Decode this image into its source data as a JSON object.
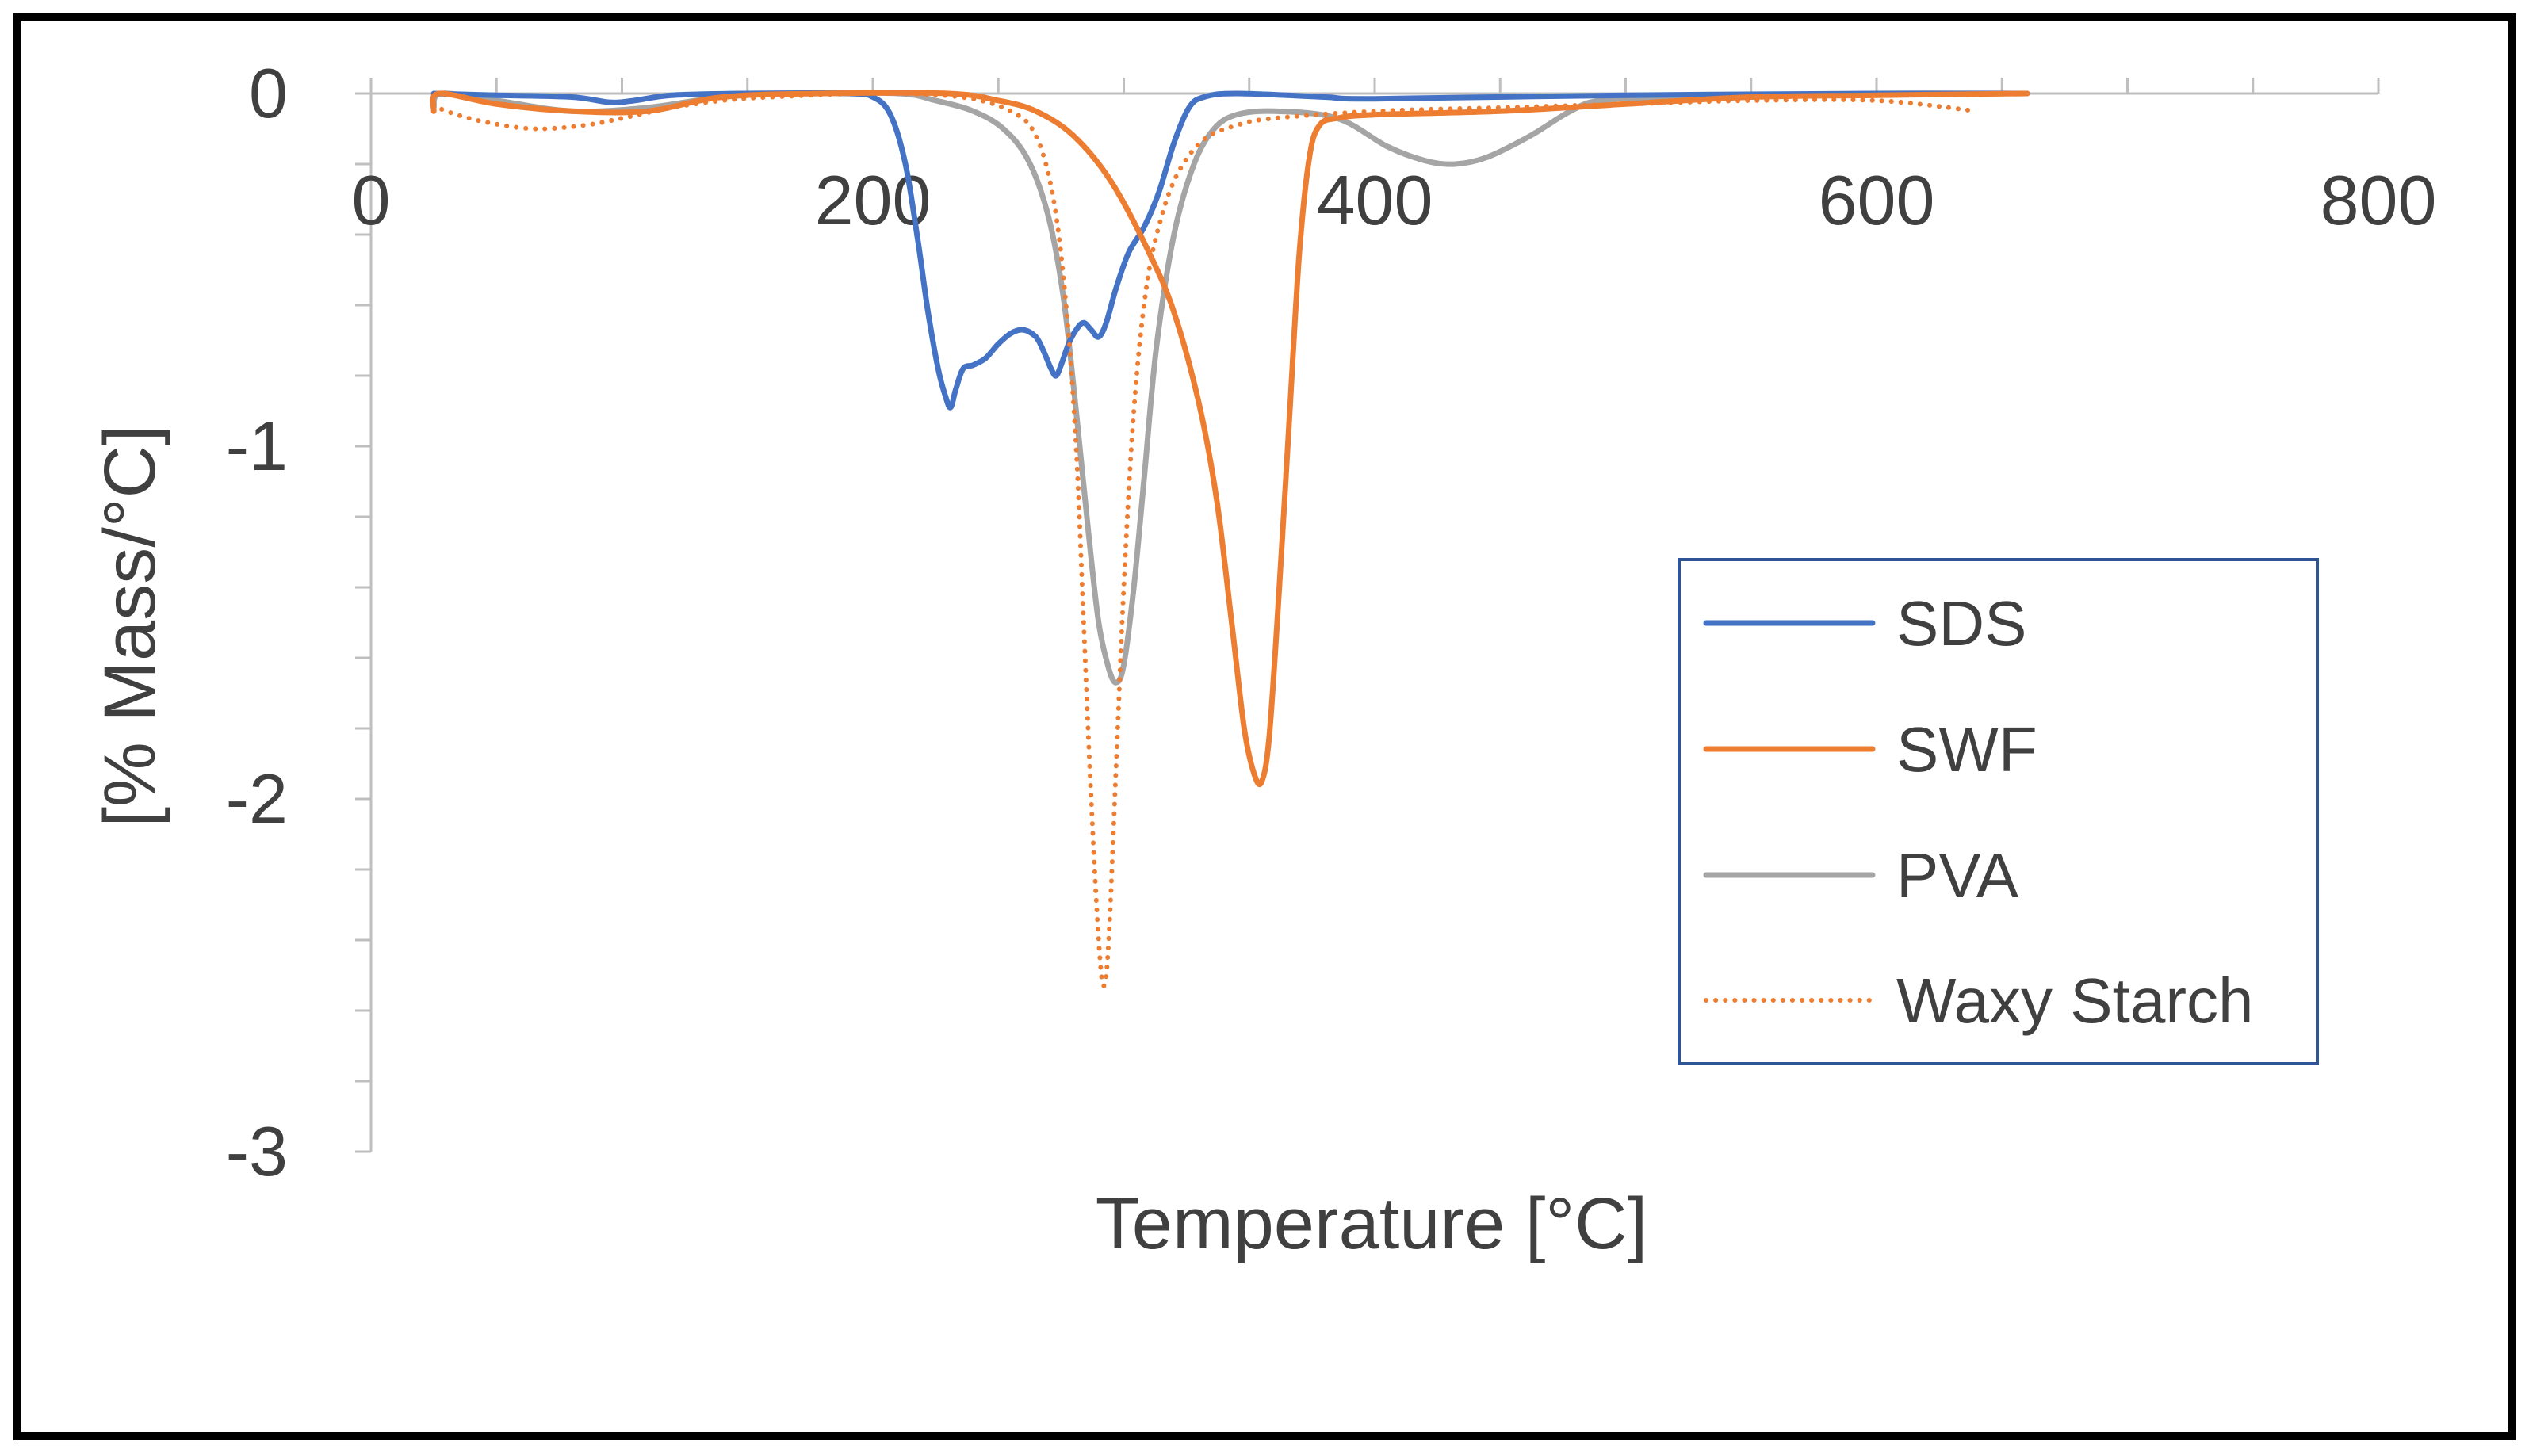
{
  "chart_data": {
    "type": "line",
    "title": "",
    "xlabel": "Temperature [°C]",
    "ylabel": "[% Mass/°C]",
    "xlim": [
      0,
      800
    ],
    "ylim": [
      -3,
      0
    ],
    "x_ticks": [
      0,
      200,
      400,
      600,
      800
    ],
    "x_tick_labels": [
      "0",
      "200",
      "400",
      "600",
      "800"
    ],
    "y_ticks": [
      0,
      -1,
      -2,
      -3
    ],
    "y_tick_labels": [
      "0",
      "-1",
      "-2",
      "-3"
    ],
    "grid": false,
    "legend_position": "right",
    "series": [
      {
        "name": "SDS",
        "color": "#4472C4",
        "style": "solid",
        "points": [
          [
            25,
            0
          ],
          [
            50,
            -0.005
          ],
          [
            80,
            -0.01
          ],
          [
            95,
            -0.025
          ],
          [
            105,
            -0.02
          ],
          [
            120,
            -0.005
          ],
          [
            150,
            0
          ],
          [
            190,
            0
          ],
          [
            200,
            -0.01
          ],
          [
            207,
            -0.06
          ],
          [
            213,
            -0.2
          ],
          [
            218,
            -0.42
          ],
          [
            222,
            -0.62
          ],
          [
            226,
            -0.78
          ],
          [
            229,
            -0.86
          ],
          [
            231,
            -0.89
          ],
          [
            233,
            -0.84
          ],
          [
            236,
            -0.78
          ],
          [
            240,
            -0.77
          ],
          [
            245,
            -0.75
          ],
          [
            250,
            -0.71
          ],
          [
            255,
            -0.68
          ],
          [
            260,
            -0.67
          ],
          [
            265,
            -0.69
          ],
          [
            268,
            -0.73
          ],
          [
            271,
            -0.78
          ],
          [
            273,
            -0.8
          ],
          [
            275,
            -0.77
          ],
          [
            278,
            -0.71
          ],
          [
            281,
            -0.67
          ],
          [
            284,
            -0.65
          ],
          [
            287,
            -0.67
          ],
          [
            290,
            -0.69
          ],
          [
            293,
            -0.65
          ],
          [
            297,
            -0.55
          ],
          [
            302,
            -0.45
          ],
          [
            308,
            -0.38
          ],
          [
            314,
            -0.28
          ],
          [
            320,
            -0.14
          ],
          [
            326,
            -0.04
          ],
          [
            332,
            -0.01
          ],
          [
            345,
            0
          ],
          [
            380,
            -0.01
          ],
          [
            400,
            -0.015
          ],
          [
            500,
            -0.005
          ],
          [
            600,
            0
          ],
          [
            660,
            0
          ]
        ]
      },
      {
        "name": "SWF",
        "color": "#ED7D31",
        "style": "solid",
        "points": [
          [
            25,
            -0.05
          ],
          [
            27,
            0
          ],
          [
            50,
            -0.03
          ],
          [
            80,
            -0.05
          ],
          [
            110,
            -0.05
          ],
          [
            140,
            -0.01
          ],
          [
            180,
            0
          ],
          [
            230,
            0
          ],
          [
            250,
            -0.02
          ],
          [
            265,
            -0.05
          ],
          [
            280,
            -0.12
          ],
          [
            295,
            -0.25
          ],
          [
            310,
            -0.45
          ],
          [
            320,
            -0.62
          ],
          [
            330,
            -0.88
          ],
          [
            337,
            -1.15
          ],
          [
            343,
            -1.5
          ],
          [
            348,
            -1.8
          ],
          [
            352,
            -1.93
          ],
          [
            355,
            -1.95
          ],
          [
            358,
            -1.82
          ],
          [
            362,
            -1.4
          ],
          [
            366,
            -0.92
          ],
          [
            370,
            -0.45
          ],
          [
            374,
            -0.18
          ],
          [
            378,
            -0.09
          ],
          [
            385,
            -0.07
          ],
          [
            400,
            -0.06
          ],
          [
            450,
            -0.05
          ],
          [
            500,
            -0.03
          ],
          [
            550,
            -0.01
          ],
          [
            600,
            -0.005
          ],
          [
            660,
            0
          ]
        ]
      },
      {
        "name": "PVA",
        "color": "#A5A5A5",
        "style": "solid",
        "points": [
          [
            25,
            -0.04
          ],
          [
            28,
            0
          ],
          [
            50,
            -0.02
          ],
          [
            80,
            -0.05
          ],
          [
            110,
            -0.04
          ],
          [
            140,
            -0.01
          ],
          [
            170,
            0
          ],
          [
            210,
            0
          ],
          [
            225,
            -0.02
          ],
          [
            240,
            -0.05
          ],
          [
            252,
            -0.1
          ],
          [
            262,
            -0.19
          ],
          [
            270,
            -0.35
          ],
          [
            276,
            -0.58
          ],
          [
            281,
            -0.9
          ],
          [
            286,
            -1.25
          ],
          [
            290,
            -1.5
          ],
          [
            294,
            -1.63
          ],
          [
            297,
            -1.67
          ],
          [
            300,
            -1.62
          ],
          [
            304,
            -1.4
          ],
          [
            308,
            -1.1
          ],
          [
            313,
            -0.72
          ],
          [
            320,
            -0.4
          ],
          [
            328,
            -0.2
          ],
          [
            336,
            -0.1
          ],
          [
            345,
            -0.06
          ],
          [
            360,
            -0.05
          ],
          [
            385,
            -0.07
          ],
          [
            405,
            -0.15
          ],
          [
            420,
            -0.19
          ],
          [
            432,
            -0.2
          ],
          [
            445,
            -0.18
          ],
          [
            462,
            -0.12
          ],
          [
            478,
            -0.05
          ],
          [
            490,
            -0.02
          ],
          [
            520,
            -0.01
          ],
          [
            600,
            0
          ],
          [
            660,
            0
          ]
        ]
      },
      {
        "name": "Waxy Starch",
        "color": "#ED7D31",
        "style": "dotted",
        "points": [
          [
            25,
            -0.03
          ],
          [
            30,
            -0.05
          ],
          [
            45,
            -0.08
          ],
          [
            65,
            -0.1
          ],
          [
            85,
            -0.09
          ],
          [
            100,
            -0.07
          ],
          [
            120,
            -0.04
          ],
          [
            140,
            -0.02
          ],
          [
            160,
            -0.01
          ],
          [
            200,
            0
          ],
          [
            235,
            -0.01
          ],
          [
            255,
            -0.05
          ],
          [
            265,
            -0.12
          ],
          [
            272,
            -0.3
          ],
          [
            277,
            -0.6
          ],
          [
            281,
            -1.0
          ],
          [
            284,
            -1.5
          ],
          [
            287,
            -2.0
          ],
          [
            290,
            -2.4
          ],
          [
            292,
            -2.53
          ],
          [
            294,
            -2.4
          ],
          [
            297,
            -1.9
          ],
          [
            300,
            -1.4
          ],
          [
            304,
            -0.9
          ],
          [
            309,
            -0.55
          ],
          [
            315,
            -0.35
          ],
          [
            322,
            -0.22
          ],
          [
            332,
            -0.13
          ],
          [
            345,
            -0.09
          ],
          [
            360,
            -0.07
          ],
          [
            400,
            -0.05
          ],
          [
            450,
            -0.04
          ],
          [
            500,
            -0.03
          ],
          [
            550,
            -0.02
          ],
          [
            600,
            -0.02
          ],
          [
            640,
            -0.05
          ]
        ]
      }
    ]
  }
}
